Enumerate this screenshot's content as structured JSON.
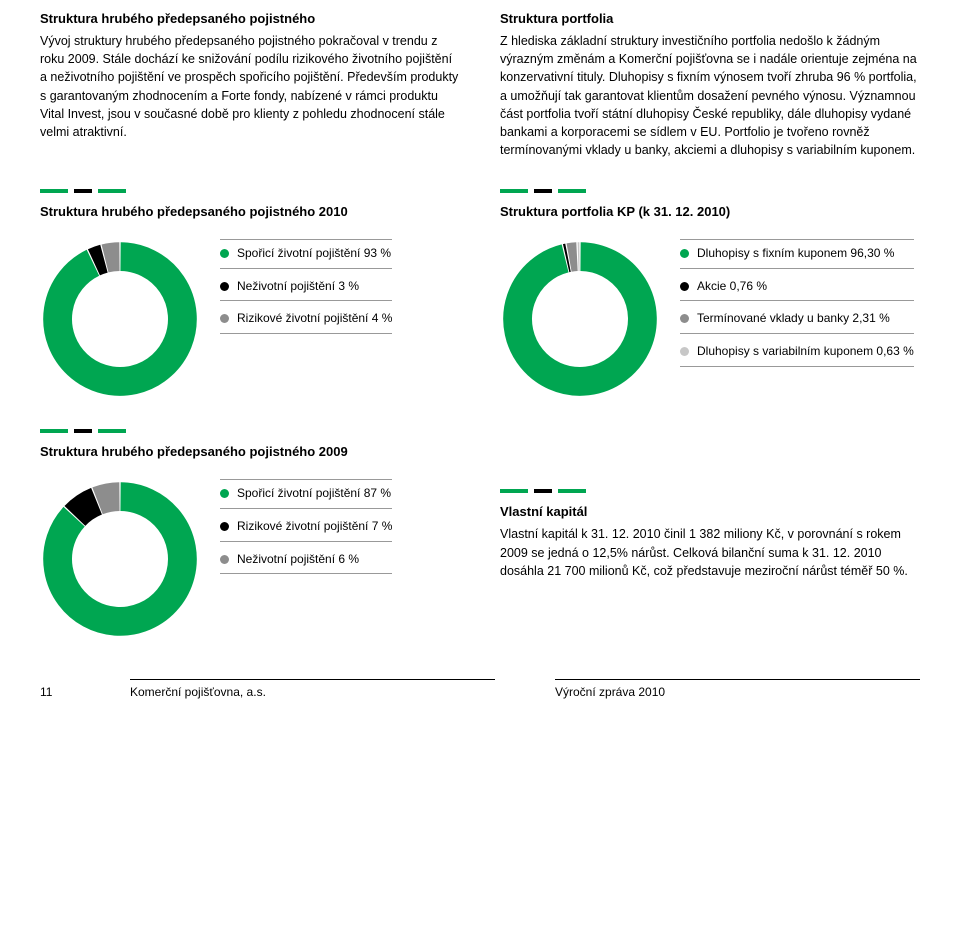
{
  "divider": {
    "colors": [
      "#00a651",
      "#000000",
      "#00a651"
    ],
    "widths": [
      28,
      18,
      28
    ]
  },
  "intro": {
    "left": {
      "title": "Struktura hrubého předepsaného pojistného",
      "body": "Vývoj struktury hrubého předepsaného pojistného pokračoval v trendu z roku 2009. Stále dochází ke snižování podílu rizikového životního pojištění a neživotního pojištění ve prospěch spořicího pojištění. Především produkty s garantovaným zhodnocením a Forte fondy, nabízené v rámci produktu Vital Invest, jsou v současné době pro klienty z pohledu zhodnocení stále velmi atraktivní."
    },
    "right": {
      "title": "Struktura portfolia",
      "body": "Z hlediska základní struktury investičního portfolia nedošlo k žádným výrazným změnám a Komerční pojišťovna se i nadále orientuje zejména na konzervativní tituly. Dluhopisy s fixním výnosem tvoří zhruba 96 % portfolia, a umožňují tak garantovat klientům dosažení pevného výnosu. Významnou část portfolia tvoří státní dluhopisy České republiky, dále dluhopisy vydané bankami a korporacemi se sídlem v EU. Portfolio je tvořeno rovněž termínovanými vklady u banky, akciemi a dluhopisy s variabilním kuponem."
    }
  },
  "chart1": {
    "title": "Struktura hrubého předepsaného pojistného 2010",
    "type": "donut",
    "slices": [
      {
        "label": "Spořicí životní pojištění 93 %",
        "value": 93,
        "color": "#00a651"
      },
      {
        "label": "Neživotní pojištění 3 %",
        "value": 3,
        "color": "#000000"
      },
      {
        "label": "Rizikové životní pojištění 4 %",
        "value": 4,
        "color": "#8d8d8d"
      }
    ],
    "ring_width": 18,
    "bg": "#ffffff"
  },
  "chart2": {
    "title": "Struktura portfolia KP (k 31. 12. 2010)",
    "type": "donut",
    "slices": [
      {
        "label": "Dluhopisy s fixním kuponem 96,30 %",
        "value": 96.3,
        "color": "#00a651"
      },
      {
        "label": "Akcie 0,76 %",
        "value": 0.76,
        "color": "#000000"
      },
      {
        "label": "Termínované vklady u banky 2,31 %",
        "value": 2.31,
        "color": "#8d8d8d"
      },
      {
        "label": "Dluhopisy s variabilním kuponem 0,63 %",
        "value": 0.63,
        "color": "#c7c7c7"
      }
    ],
    "ring_width": 18,
    "bg": "#ffffff"
  },
  "chart3": {
    "title": "Struktura hrubého předepsaného pojistného 2009",
    "type": "donut",
    "slices": [
      {
        "label": "Spořicí životní pojištění 87 %",
        "value": 87,
        "color": "#00a651"
      },
      {
        "label": "Rizikové životní pojištění 7 %",
        "value": 7,
        "color": "#000000"
      },
      {
        "label": "Neživotní pojištění 6 %",
        "value": 6,
        "color": "#8d8d8d"
      }
    ],
    "ring_width": 18,
    "bg": "#ffffff"
  },
  "equity": {
    "title": "Vlastní kapitál",
    "body": "Vlastní kapitál k 31. 12. 2010 činil 1 382 miliony Kč, v porovnání s rokem 2009 se jedná o 12,5% nárůst. Celková bilanční suma k 31. 12. 2010 dosáhla 21 700 milionů Kč, což představuje meziroční nárůst téměř 50 %."
  },
  "footer": {
    "page": "11",
    "left": "Komerční pojišťovna, a.s.",
    "right": "Výroční zpráva 2010"
  }
}
